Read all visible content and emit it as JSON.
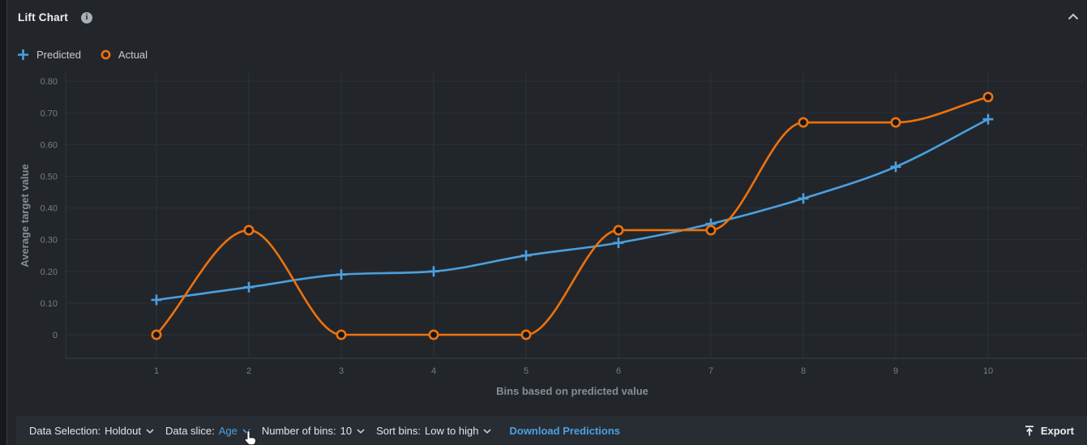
{
  "header": {
    "title": "Lift Chart"
  },
  "icons": {
    "info": "i"
  },
  "legend": [
    {
      "label": "Predicted"
    },
    {
      "label": "Actual"
    }
  ],
  "chart_data": {
    "type": "line",
    "smooth": true,
    "grid": true,
    "legend_position": "top-left",
    "x": [
      1,
      2,
      3,
      4,
      5,
      6,
      7,
      8,
      9,
      10
    ],
    "series": [
      {
        "name": "Predicted",
        "marker": "plus",
        "color": "#4BA0DF",
        "values": [
          0.11,
          0.15,
          0.19,
          0.2,
          0.25,
          0.29,
          0.35,
          0.43,
          0.53,
          0.68
        ]
      },
      {
        "name": "Actual",
        "marker": "circle",
        "color": "#EF720D",
        "values": [
          0.0,
          0.33,
          0.0,
          0.0,
          0.0,
          0.33,
          0.33,
          0.67,
          0.67,
          0.75
        ]
      }
    ],
    "xlabel": "Bins based on predicted value",
    "ylabel": "Average target value",
    "y_ticks": [
      "0.80",
      "0.70",
      "0.60",
      "0.50",
      "0.40",
      "0.30",
      "0.20",
      "0.10",
      "0"
    ],
    "ylim": [
      0,
      0.8
    ]
  },
  "footer": {
    "data_selection_label": "Data Selection:",
    "data_selection_value": "Holdout",
    "data_slice_label": "Data slice:",
    "data_slice_value": "Age",
    "bins_label": "Number of bins:",
    "bins_value": "10",
    "sort_label": "Sort bins:",
    "sort_value": "Low to high",
    "download_link": "Download Predictions",
    "export_label": "Export"
  }
}
